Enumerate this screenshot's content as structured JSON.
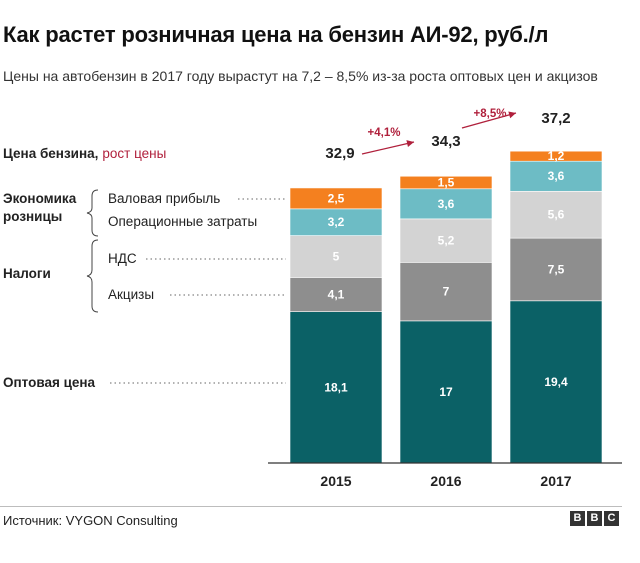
{
  "title": "Как растет розничная цена на бензин АИ-92, руб./л",
  "subtitle": "Цены на автобензин в 2017 году вырастут на 7,2 – 8,5% из-за роста оптовых цен и акцизов",
  "source": "Источник: VYGON Consulting",
  "brand": [
    "B",
    "B",
    "C"
  ],
  "legend": {
    "price_label": "Цена бензина,",
    "growth_label": "рост цены",
    "retail_group": "Экономика\nрозницы",
    "tax_group": "Налоги",
    "wholesale": "Оптовая цена",
    "gross_profit": "Валовая прибыль",
    "opex": "Операционные затраты",
    "vat": "НДС",
    "excise": "Акцизы"
  },
  "colors": {
    "wholesale": "#0b6166",
    "excise": "#8e8e8e",
    "vat": "#d3d3d3",
    "opex": "#6dbcc5",
    "gross_profit": "#f4801f",
    "growth": "#b0203c"
  },
  "chart_data": {
    "type": "bar",
    "stacked": true,
    "categories": [
      "2015",
      "2016",
      "2017"
    ],
    "series": [
      {
        "name": "Оптовая цена",
        "key": "wholesale",
        "values": [
          18.1,
          17,
          19.4
        ],
        "labels": [
          "18,1",
          "17",
          "19,4"
        ]
      },
      {
        "name": "Акцизы",
        "key": "excise",
        "values": [
          4.1,
          7,
          7.5
        ],
        "labels": [
          "4,1",
          "7",
          "7,5"
        ]
      },
      {
        "name": "НДС",
        "key": "vat",
        "values": [
          5,
          5.2,
          5.6
        ],
        "labels": [
          "5",
          "5,2",
          "5,6"
        ]
      },
      {
        "name": "Операционные затраты",
        "key": "opex",
        "values": [
          3.2,
          3.6,
          3.6
        ],
        "labels": [
          "3,2",
          "3,6",
          "3,6"
        ]
      },
      {
        "name": "Валовая прибыль",
        "key": "gross_profit",
        "values": [
          2.5,
          1.5,
          1.2
        ],
        "labels": [
          "2,5",
          "1,5",
          "1,2"
        ]
      }
    ],
    "totals": [
      32.9,
      34.3,
      37.2
    ],
    "total_labels": [
      "32,9",
      "34,3",
      "37,2"
    ],
    "growth_labels": [
      "+4,1%",
      "+8,5%"
    ],
    "title": "Как растет розничная цена на бензин АИ-92, руб./л",
    "xlabel": "",
    "ylabel": "руб./л",
    "ylim": [
      0,
      37.2
    ]
  }
}
